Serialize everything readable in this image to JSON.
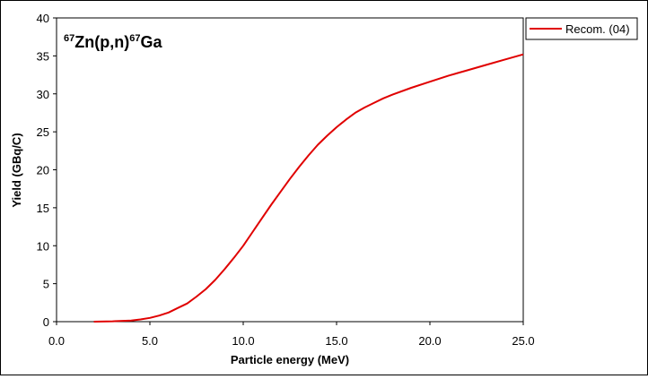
{
  "chart_data": {
    "type": "line",
    "annotation": {
      "mass_a": "67",
      "target": "Zn(p,n)",
      "mass_b": "67",
      "product": "Ga"
    },
    "xlabel": "Particle energy (MeV)",
    "ylabel": "Yield (GBq/C)",
    "xlim": [
      0,
      25
    ],
    "ylim": [
      0,
      40
    ],
    "x_ticks": [
      "0.0",
      "5.0",
      "10.0",
      "15.0",
      "20.0",
      "25.0"
    ],
    "y_ticks": [
      "0",
      "5",
      "10",
      "15",
      "20",
      "25",
      "30",
      "35",
      "40"
    ],
    "grid": false,
    "legend_position": "top-right outside",
    "series": [
      {
        "name": "Recom. (04)",
        "color": "#e00000",
        "x": [
          2,
          3,
          4,
          4.5,
          5,
          5.5,
          6,
          6.5,
          7,
          7.5,
          8,
          8.5,
          9,
          9.5,
          10,
          10.5,
          11,
          11.5,
          12,
          12.5,
          13,
          13.5,
          14,
          14.5,
          15,
          15.5,
          16,
          16.5,
          17,
          17.5,
          18,
          19,
          20,
          21,
          22,
          23,
          24,
          25
        ],
        "y": [
          0.0,
          0.05,
          0.15,
          0.3,
          0.5,
          0.8,
          1.2,
          1.8,
          2.4,
          3.3,
          4.3,
          5.5,
          6.9,
          8.4,
          10.0,
          11.8,
          13.6,
          15.4,
          17.1,
          18.8,
          20.4,
          21.9,
          23.3,
          24.5,
          25.6,
          26.6,
          27.5,
          28.2,
          28.8,
          29.4,
          29.9,
          30.8,
          31.6,
          32.4,
          33.1,
          33.8,
          34.5,
          35.2
        ]
      }
    ]
  }
}
